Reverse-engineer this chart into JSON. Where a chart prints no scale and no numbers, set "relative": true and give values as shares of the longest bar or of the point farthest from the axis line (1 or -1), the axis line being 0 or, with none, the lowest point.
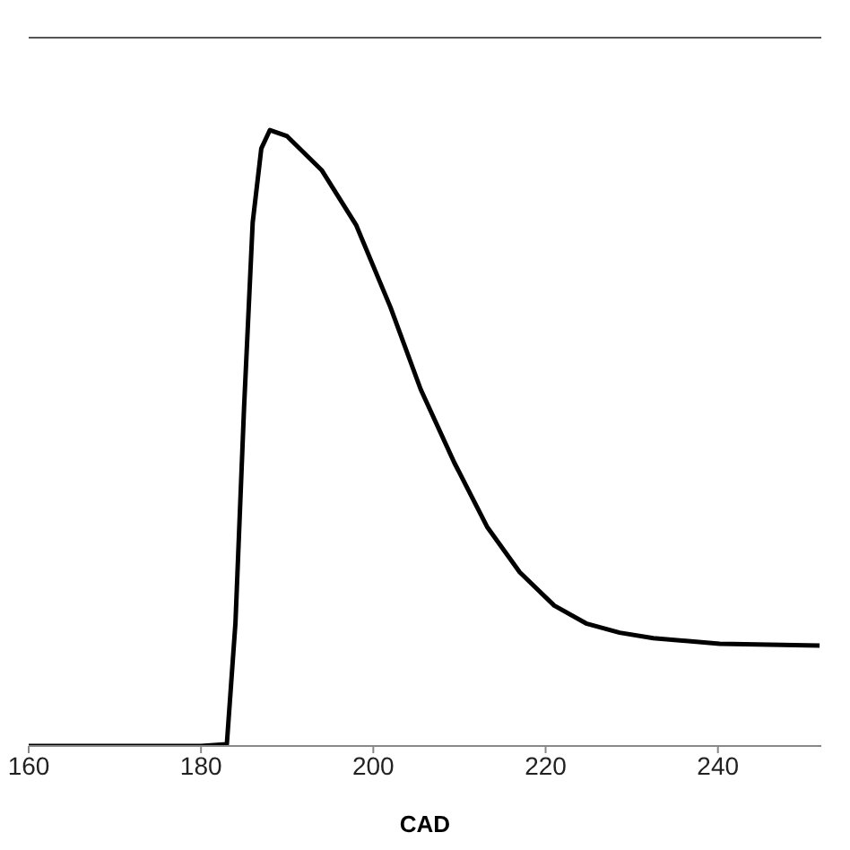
{
  "chart_data": {
    "type": "line",
    "xlabel": "CAD",
    "relative": true,
    "xlim": [
      160,
      252
    ],
    "xticks": [
      160,
      180,
      200,
      220,
      240
    ],
    "grid": false,
    "legend": false,
    "marker": "none",
    "line_style": "solid",
    "series": [
      {
        "color": "#000000",
        "x": [
          160,
          180,
          183,
          184,
          185,
          186,
          187,
          188,
          190,
          194,
          198,
          202,
          205.5,
          209.4,
          213.2,
          217,
          221,
          224.7,
          228.6,
          232.5,
          240.2,
          251.8
        ],
        "values": [
          0,
          0,
          0.003,
          0.2,
          0.55,
          0.85,
          0.97,
          1,
          0.99,
          0.935,
          0.846,
          0.712,
          0.579,
          0.46,
          0.356,
          0.282,
          0.228,
          0.199,
          0.184,
          0.175,
          0.166,
          0.163
        ]
      }
    ]
  }
}
